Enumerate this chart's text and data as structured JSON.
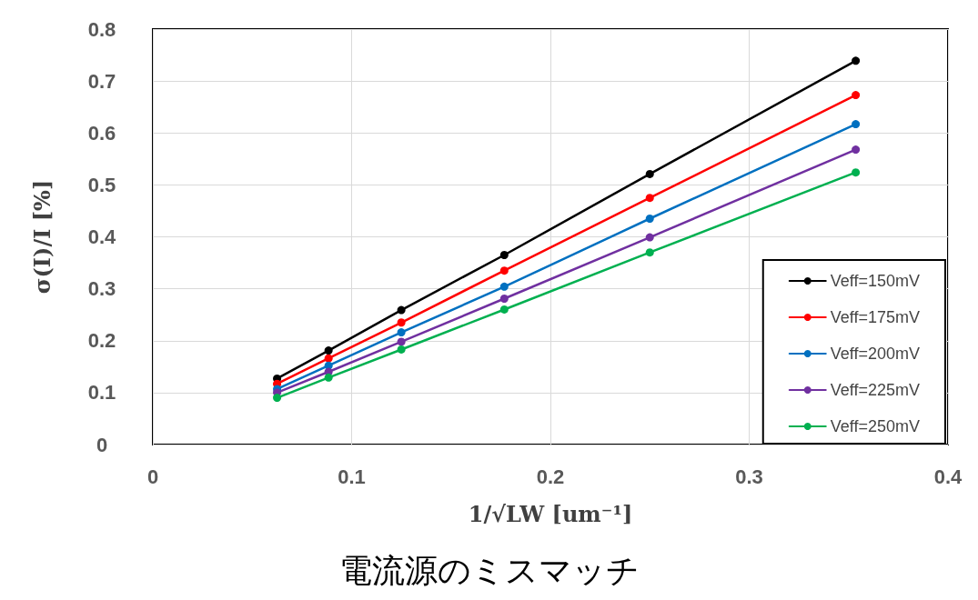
{
  "chart_data": {
    "type": "line",
    "title": "電流源のミスマッチ",
    "xlabel": "1/√LW [um⁻¹]",
    "ylabel": "σ(I)/I [%]",
    "x": [
      0.0625,
      0.0884,
      0.125,
      0.1768,
      0.25,
      0.3536
    ],
    "series": [
      {
        "name": "Veff=150mV",
        "color": "#000000",
        "values": [
          0.127,
          0.181,
          0.259,
          0.365,
          0.521,
          0.739
        ]
      },
      {
        "name": "Veff=175mV",
        "color": "#ff0000",
        "values": [
          0.117,
          0.166,
          0.235,
          0.335,
          0.475,
          0.673
        ]
      },
      {
        "name": "Veff=200mV",
        "color": "#0070c0",
        "values": [
          0.107,
          0.152,
          0.216,
          0.304,
          0.435,
          0.617
        ]
      },
      {
        "name": "Veff=225mV",
        "color": "#7030a0",
        "values": [
          0.1,
          0.14,
          0.198,
          0.281,
          0.399,
          0.568
        ]
      },
      {
        "name": "Veff=250mV",
        "color": "#00b050",
        "values": [
          0.09,
          0.129,
          0.183,
          0.26,
          0.37,
          0.524
        ]
      }
    ],
    "xlim": [
      0,
      0.4
    ],
    "xticks": [
      0,
      0.1,
      0.2,
      0.3,
      0.4
    ],
    "ylim": [
      0,
      0.8
    ],
    "yticks": [
      0,
      0.1,
      0.2,
      0.3,
      0.4,
      0.5,
      0.6,
      0.7,
      0.8
    ],
    "grid": true,
    "legend": "bottom right",
    "marker": "circle",
    "line_style": "solid"
  }
}
